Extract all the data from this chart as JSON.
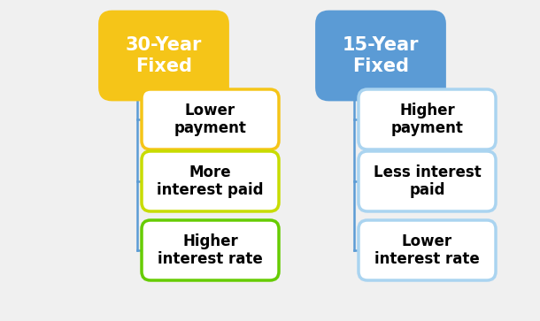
{
  "background_color": "#f0f0f0",
  "left_header": "30-Year\nFixed",
  "right_header": "15-Year\nFixed",
  "left_header_bg": "#f5c518",
  "right_header_bg": "#5b9bd5",
  "left_header_text_color": "#ffffff",
  "right_header_text_color": "#ffffff",
  "left_items": [
    "Lower\npayment",
    "More\ninterest paid",
    "Higher\ninterest rate"
  ],
  "right_items": [
    "Higher\npayment",
    "Less interest\npaid",
    "Lower\ninterest rate"
  ],
  "left_item_border_colors": [
    "#f5c518",
    "#c8dc00",
    "#66cc00"
  ],
  "right_item_border_colors": [
    "#aad4f0",
    "#aad4f0",
    "#aad4f0"
  ],
  "item_bg": "#ffffff",
  "item_text_color": "#000000",
  "connector_color": "#5b9bd5",
  "header_fontsize": 15,
  "item_fontsize": 12,
  "fig_width": 6.1,
  "fig_height": 3.63,
  "dpi": 100
}
